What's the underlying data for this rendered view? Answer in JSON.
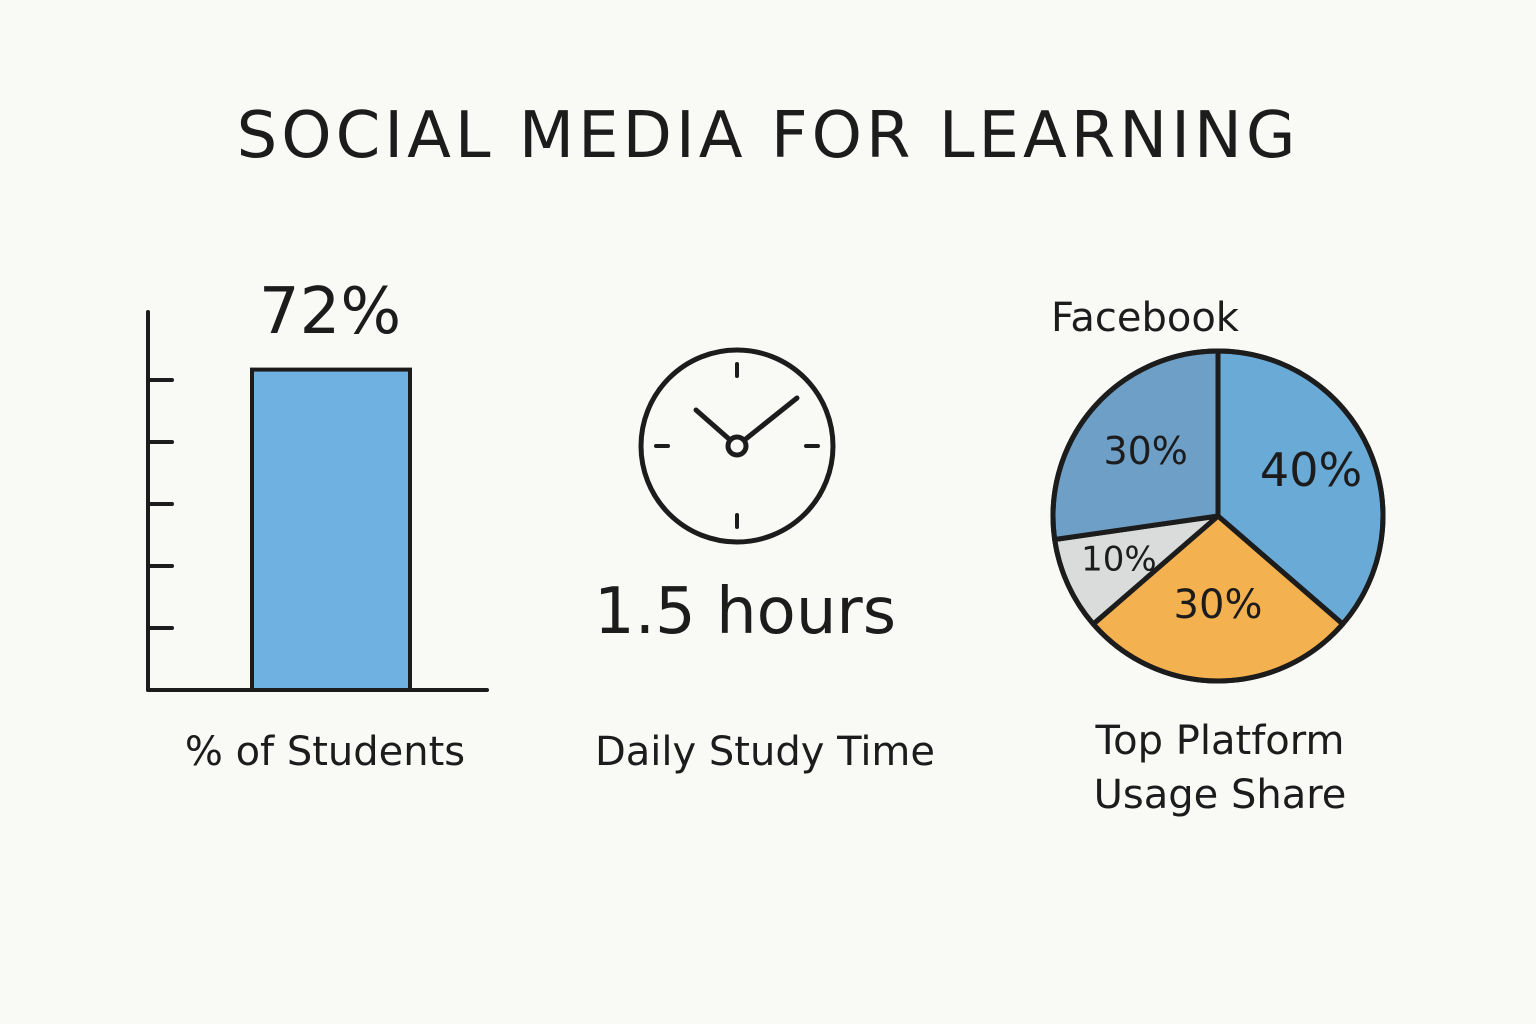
{
  "title": "SOCIAL MEDIA FOR LEARNING",
  "chart_data": [
    {
      "type": "bar",
      "categories": [
        ""
      ],
      "values": [
        72
      ],
      "value_label": "72%",
      "xlabel": "% of Students",
      "ylim": [
        0,
        100
      ],
      "ticks": 5,
      "bar_color": "#6fb1e0"
    },
    {
      "type": "stat",
      "icon": "clock-icon",
      "value": 1.5,
      "value_label": "1.5 hours",
      "caption": "Daily Study Time"
    },
    {
      "type": "pie",
      "top_label": "Facebook",
      "caption_lines": [
        "Top Platform",
        "Usage Share"
      ],
      "slices": [
        {
          "value": 40,
          "label": "40%",
          "color": "#6aaad6"
        },
        {
          "value": 30,
          "label": "30%",
          "color": "#f4b150"
        },
        {
          "value": 10,
          "label": "10%",
          "color": "#d9dcdb"
        },
        {
          "value": 30,
          "label": "30%",
          "color": "#6e9fc7"
        }
      ]
    }
  ]
}
